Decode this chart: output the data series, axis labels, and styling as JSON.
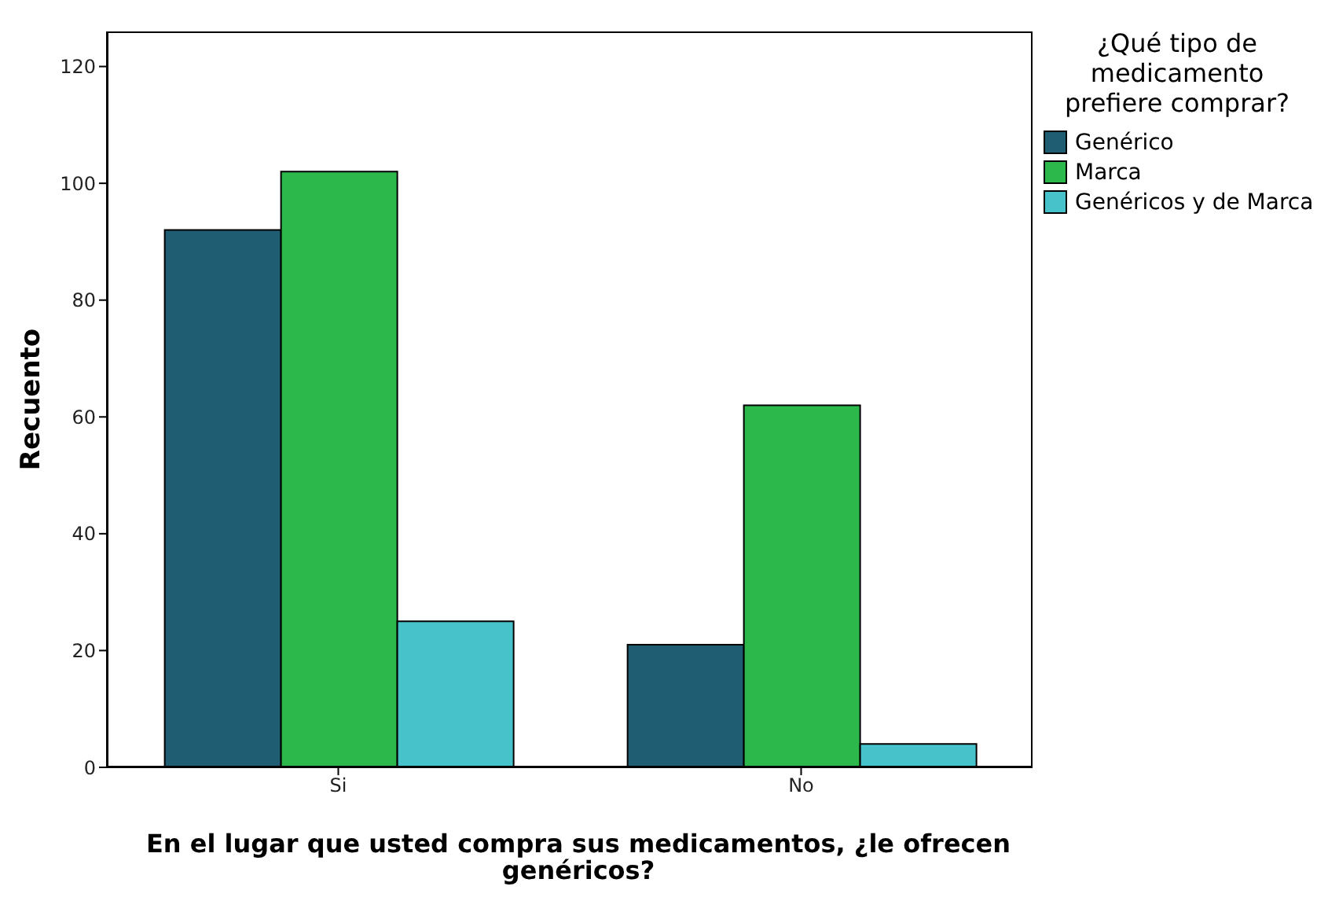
{
  "chart_data": {
    "type": "bar",
    "xlabel": "En el lugar que usted compra sus medicamentos, ¿le ofrecen genéricos?",
    "ylabel": "Recuento",
    "legend_title": "¿Qué tipo de medicamento prefiere comprar?",
    "categories": [
      "Si",
      "No"
    ],
    "series": [
      {
        "name": "Genérico",
        "color": "#1f5d73",
        "values": [
          92,
          21
        ]
      },
      {
        "name": "Marca",
        "color": "#2db84b",
        "values": [
          102,
          62
        ]
      },
      {
        "name": "Genéricos y de Marca",
        "color": "#48c2ca",
        "values": [
          25,
          4
        ]
      }
    ],
    "ylim": [
      0,
      126
    ],
    "yticks": [
      0,
      20,
      40,
      60,
      80,
      100,
      120
    ],
    "grid": false,
    "legend": "right"
  }
}
